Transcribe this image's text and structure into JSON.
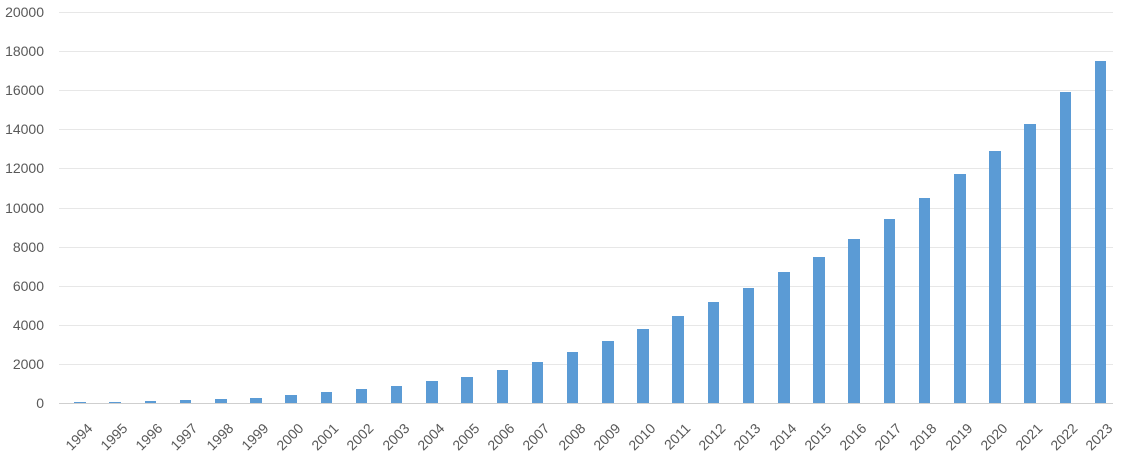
{
  "chart_data": {
    "type": "bar",
    "title": "",
    "xlabel": "",
    "ylabel": "",
    "categories": [
      "1994",
      "1995",
      "1996",
      "1997",
      "1998",
      "1999",
      "2000",
      "2001",
      "2002",
      "2003",
      "2004",
      "2005",
      "2006",
      "2007",
      "2008",
      "2009",
      "2010",
      "2011",
      "2012",
      "2013",
      "2014",
      "2015",
      "2016",
      "2017",
      "2018",
      "2019",
      "2020",
      "2021",
      "2022",
      "2023"
    ],
    "values": [
      30,
      60,
      110,
      150,
      220,
      280,
      390,
      560,
      700,
      870,
      1120,
      1350,
      1680,
      2120,
      2600,
      3170,
      3780,
      4460,
      5150,
      5880,
      6680,
      7480,
      8400,
      9390,
      10480,
      11700,
      12900,
      14290,
      15890,
      17500
    ],
    "ylim": [
      0,
      20000
    ],
    "yticks": [
      0,
      2000,
      4000,
      6000,
      8000,
      10000,
      12000,
      14000,
      16000,
      18000,
      20000
    ],
    "grid": true,
    "legend": false,
    "x_label_rotation_deg": 45,
    "colors": {
      "bar": "#5B9BD5",
      "gridline": "#E7E7E7",
      "axis_line": "#CFCFCF",
      "tick_label": "#595959",
      "background": "#FFFFFF"
    }
  }
}
